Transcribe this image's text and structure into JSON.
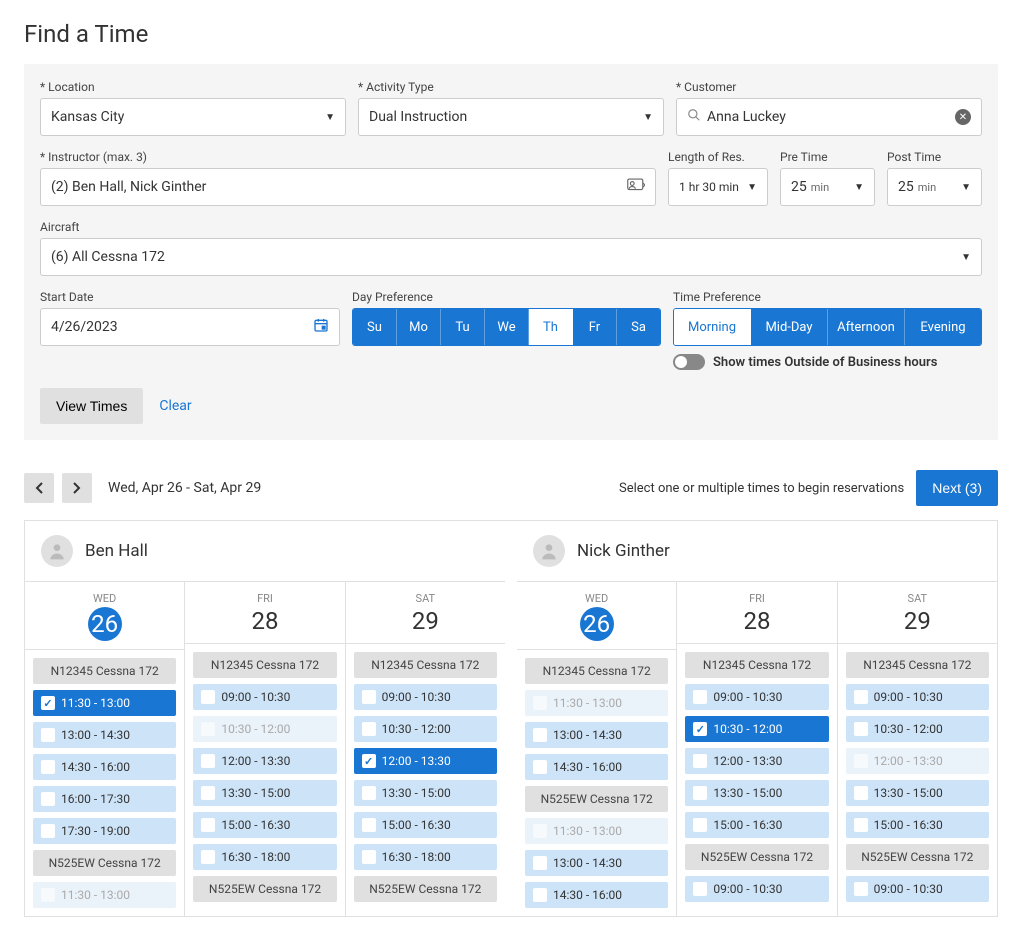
{
  "title": "Find a Time",
  "fields": {
    "location": {
      "label": "* Location",
      "value": "Kansas City"
    },
    "activity_type": {
      "label": "* Activity Type",
      "value": "Dual Instruction"
    },
    "customer": {
      "label": "* Customer",
      "value": "Anna Luckey"
    },
    "instructor": {
      "label": "* Instructor (max. 3)",
      "value": "(2) Ben Hall, Nick Ginther"
    },
    "length": {
      "label": "Length of Res.",
      "value": "1 hr 30 min"
    },
    "pre_time": {
      "label": "Pre Time",
      "value": "25",
      "unit": "min"
    },
    "post_time": {
      "label": "Post Time",
      "value": "25",
      "unit": "min"
    },
    "aircraft": {
      "label": "Aircraft",
      "value": "(6) All Cessna 172"
    },
    "start_date": {
      "label": "Start Date",
      "value": "4/26/2023"
    },
    "day_pref_label": "Day Preference",
    "time_pref_label": "Time Preference"
  },
  "day_prefs": [
    {
      "label": "Su",
      "on": true
    },
    {
      "label": "Mo",
      "on": true
    },
    {
      "label": "Tu",
      "on": true
    },
    {
      "label": "We",
      "on": true
    },
    {
      "label": "Th",
      "on": false
    },
    {
      "label": "Fr",
      "on": true
    },
    {
      "label": "Sa",
      "on": true
    }
  ],
  "time_prefs": [
    {
      "label": "Morning",
      "on": false
    },
    {
      "label": "Mid-Day",
      "on": true
    },
    {
      "label": "Afternoon",
      "on": true
    },
    {
      "label": "Evening",
      "on": true
    }
  ],
  "toggle_label": "Show times Outside of Business hours",
  "buttons": {
    "view_times": "View Times",
    "clear": "Clear",
    "next": "Next (3)"
  },
  "results": {
    "date_range": "Wed, Apr 26 - Sat, Apr 29",
    "hint": "Select one or multiple times to begin reservations"
  },
  "instructors": [
    {
      "name": "Ben Hall",
      "days": [
        {
          "dow": "WED",
          "num": "26",
          "today": true,
          "items": [
            {
              "type": "aircraft",
              "label": "N12345 Cessna 172"
            },
            {
              "type": "slot",
              "time": "11:30 - 13:00",
              "state": "selected"
            },
            {
              "type": "slot",
              "time": "13:00 - 14:30",
              "state": "avail"
            },
            {
              "type": "slot",
              "time": "14:30 - 16:00",
              "state": "avail"
            },
            {
              "type": "slot",
              "time": "16:00 - 17:30",
              "state": "avail"
            },
            {
              "type": "slot",
              "time": "17:30 - 19:00",
              "state": "avail"
            },
            {
              "type": "aircraft",
              "label": "N525EW Cessna 172"
            },
            {
              "type": "slot",
              "time": "11:30 - 13:00",
              "state": "dim"
            }
          ]
        },
        {
          "dow": "FRI",
          "num": "28",
          "today": false,
          "items": [
            {
              "type": "aircraft",
              "label": "N12345 Cessna 172"
            },
            {
              "type": "slot",
              "time": "09:00 - 10:30",
              "state": "avail"
            },
            {
              "type": "slot",
              "time": "10:30 - 12:00",
              "state": "dim"
            },
            {
              "type": "slot",
              "time": "12:00 - 13:30",
              "state": "avail"
            },
            {
              "type": "slot",
              "time": "13:30 - 15:00",
              "state": "avail"
            },
            {
              "type": "slot",
              "time": "15:00 - 16:30",
              "state": "avail"
            },
            {
              "type": "slot",
              "time": "16:30 - 18:00",
              "state": "avail"
            },
            {
              "type": "aircraft",
              "label": "N525EW Cessna 172"
            }
          ]
        },
        {
          "dow": "SAT",
          "num": "29",
          "today": false,
          "items": [
            {
              "type": "aircraft",
              "label": "N12345 Cessna 172"
            },
            {
              "type": "slot",
              "time": "09:00 - 10:30",
              "state": "avail"
            },
            {
              "type": "slot",
              "time": "10:30 - 12:00",
              "state": "avail"
            },
            {
              "type": "slot",
              "time": "12:00 - 13:30",
              "state": "selected"
            },
            {
              "type": "slot",
              "time": "13:30 - 15:00",
              "state": "avail"
            },
            {
              "type": "slot",
              "time": "15:00 - 16:30",
              "state": "avail"
            },
            {
              "type": "slot",
              "time": "16:30 - 18:00",
              "state": "avail"
            },
            {
              "type": "aircraft",
              "label": "N525EW Cessna 172"
            }
          ]
        }
      ]
    },
    {
      "name": "Nick Ginther",
      "days": [
        {
          "dow": "WED",
          "num": "26",
          "today": true,
          "items": [
            {
              "type": "aircraft",
              "label": "N12345 Cessna 172"
            },
            {
              "type": "slot",
              "time": "11:30 - 13:00",
              "state": "dim"
            },
            {
              "type": "slot",
              "time": "13:00 - 14:30",
              "state": "avail"
            },
            {
              "type": "slot",
              "time": "14:30 - 16:00",
              "state": "avail"
            },
            {
              "type": "aircraft",
              "label": "N525EW Cessna 172"
            },
            {
              "type": "slot",
              "time": "11:30 - 13:00",
              "state": "dim"
            },
            {
              "type": "slot",
              "time": "13:00 - 14:30",
              "state": "avail"
            },
            {
              "type": "slot",
              "time": "14:30 - 16:00",
              "state": "avail"
            }
          ]
        },
        {
          "dow": "FRI",
          "num": "28",
          "today": false,
          "items": [
            {
              "type": "aircraft",
              "label": "N12345 Cessna 172"
            },
            {
              "type": "slot",
              "time": "09:00 - 10:30",
              "state": "avail"
            },
            {
              "type": "slot",
              "time": "10:30 - 12:00",
              "state": "selected"
            },
            {
              "type": "slot",
              "time": "12:00 - 13:30",
              "state": "avail"
            },
            {
              "type": "slot",
              "time": "13:30 - 15:00",
              "state": "avail"
            },
            {
              "type": "slot",
              "time": "15:00 - 16:30",
              "state": "avail"
            },
            {
              "type": "aircraft",
              "label": "N525EW Cessna 172"
            },
            {
              "type": "slot",
              "time": "09:00 - 10:30",
              "state": "avail"
            }
          ]
        },
        {
          "dow": "SAT",
          "num": "29",
          "today": false,
          "items": [
            {
              "type": "aircraft",
              "label": "N12345 Cessna 172"
            },
            {
              "type": "slot",
              "time": "09:00 - 10:30",
              "state": "avail"
            },
            {
              "type": "slot",
              "time": "10:30 - 12:00",
              "state": "avail"
            },
            {
              "type": "slot",
              "time": "12:00 - 13:30",
              "state": "dim"
            },
            {
              "type": "slot",
              "time": "13:30 - 15:00",
              "state": "avail"
            },
            {
              "type": "slot",
              "time": "15:00 - 16:30",
              "state": "avail"
            },
            {
              "type": "aircraft",
              "label": "N525EW Cessna 172"
            },
            {
              "type": "slot",
              "time": "09:00 - 10:30",
              "state": "avail"
            }
          ]
        }
      ]
    }
  ]
}
